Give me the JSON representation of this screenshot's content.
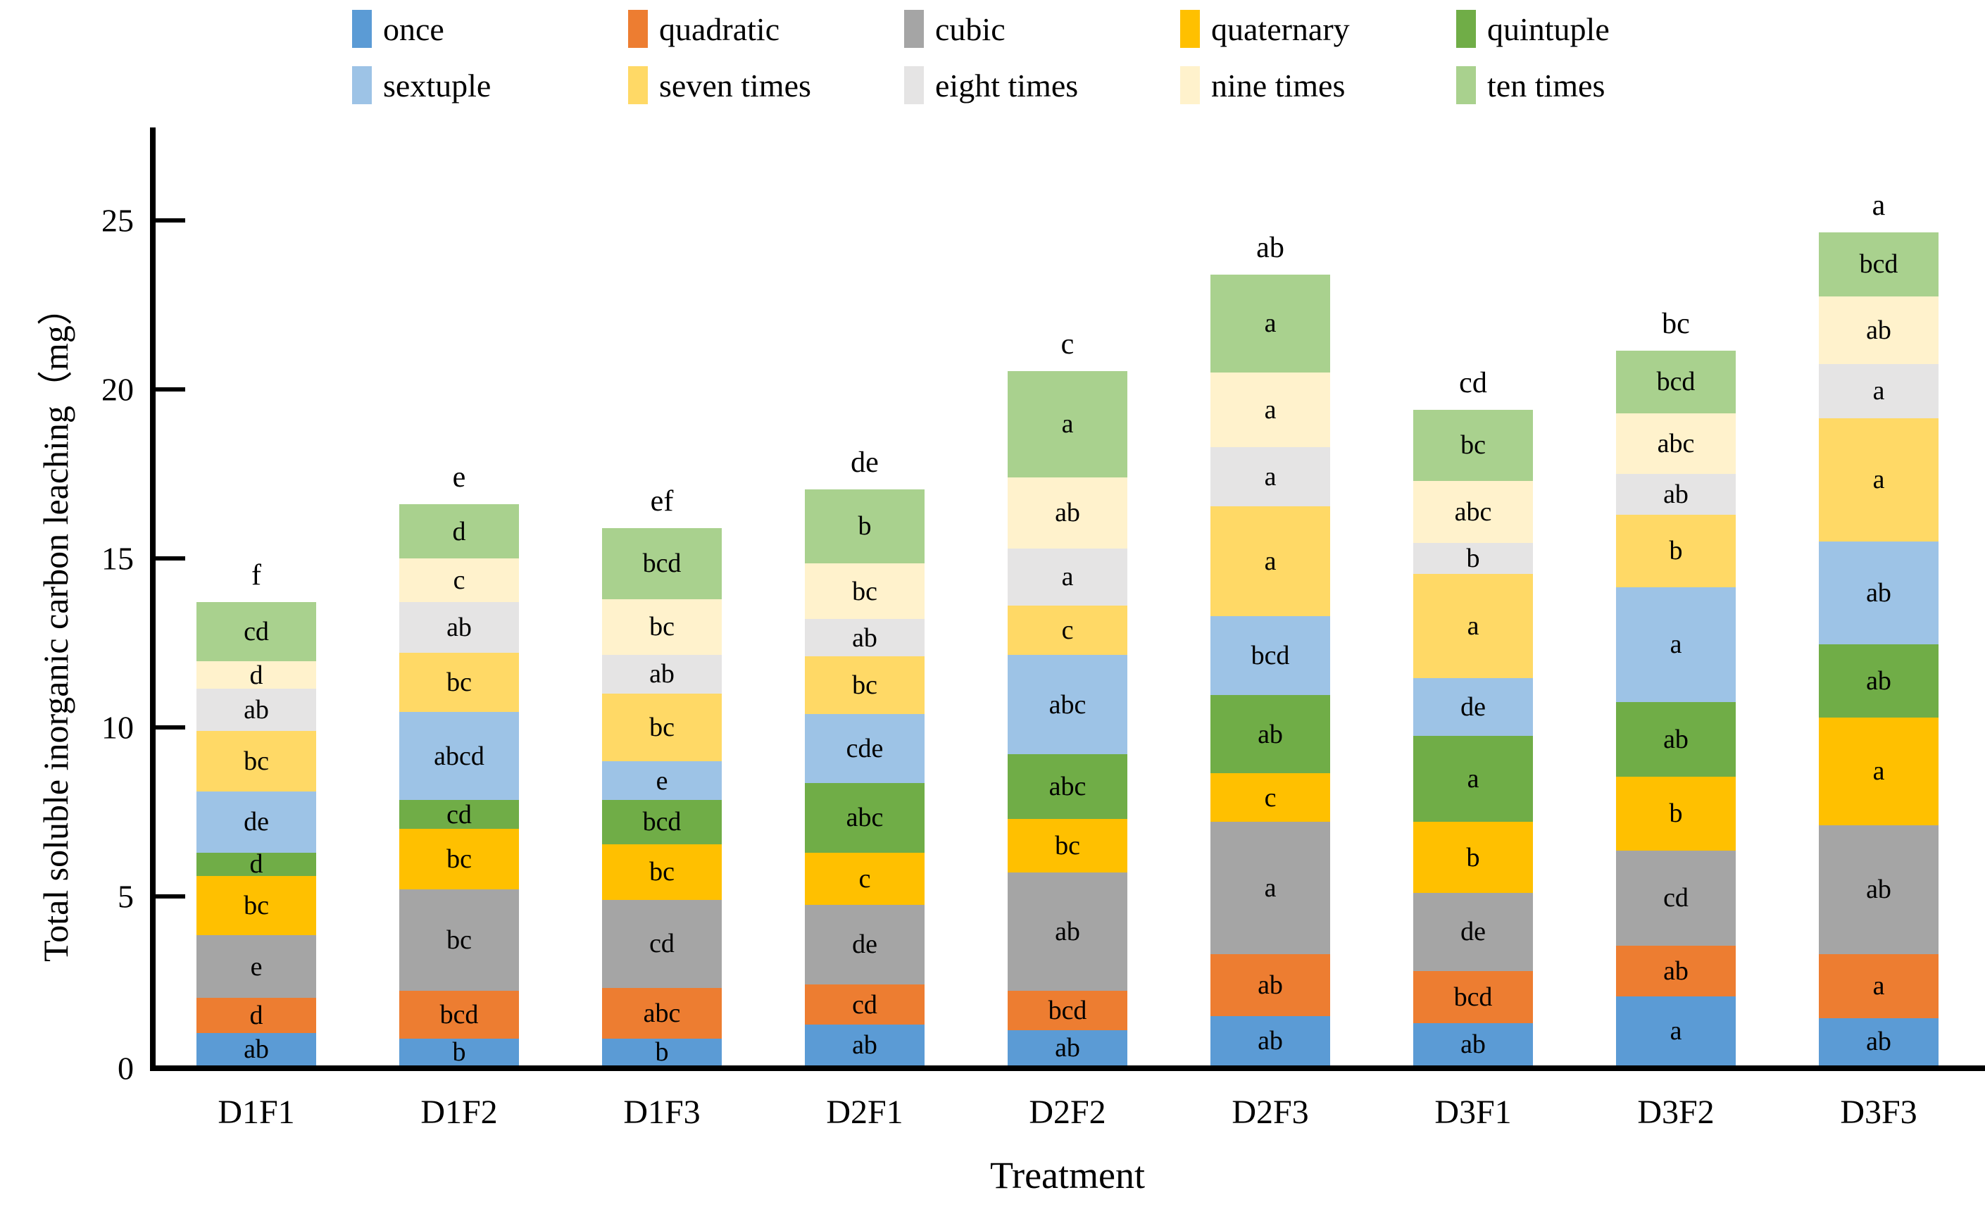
{
  "chart_data": {
    "type": "bar",
    "subtype": "stacked",
    "title": "",
    "xlabel": "Treatment",
    "ylabel": "Total soluble inorganic carbon leaching（mg）",
    "ylim": [
      0,
      27.5
    ],
    "yticks": [
      0,
      5,
      10,
      15,
      20,
      25
    ],
    "grid": false,
    "legend_position": "top",
    "categories": [
      "D1F1",
      "D1F2",
      "D1F3",
      "D2F1",
      "D2F2",
      "D2F3",
      "D3F1",
      "D3F2",
      "D3F3"
    ],
    "bar_total_labels": [
      "f",
      "e",
      "ef",
      "de",
      "c",
      "ab",
      "cd",
      "bc",
      "a"
    ],
    "bar_totals": [
      13.7,
      16.6,
      15.9,
      17.05,
      20.55,
      23.4,
      19.4,
      21.15,
      24.65
    ],
    "series": [
      {
        "name": "once",
        "color": "#5B9BD5",
        "values": [
          0.95,
          0.8,
          0.8,
          1.2,
          1.05,
          1.45,
          1.25,
          2.05,
          1.4
        ],
        "letters": [
          "ab",
          "b",
          "b",
          "ab",
          "ab",
          "ab",
          "ab",
          "a",
          "ab"
        ]
      },
      {
        "name": "quadratic",
        "color": "#ED7D31",
        "values": [
          1.05,
          1.4,
          1.5,
          1.2,
          1.15,
          1.85,
          1.55,
          1.5,
          1.9
        ],
        "letters": [
          "d",
          "bcd",
          "abc",
          "cd",
          "bcd",
          "ab",
          "bcd",
          "ab",
          "a"
        ]
      },
      {
        "name": "cubic",
        "color": "#A5A5A5",
        "values": [
          1.85,
          3.0,
          2.6,
          2.35,
          3.5,
          3.9,
          2.3,
          2.8,
          3.8
        ],
        "letters": [
          "e",
          "bc",
          "cd",
          "de",
          "ab",
          "a",
          "de",
          "cd",
          "ab"
        ]
      },
      {
        "name": "quaternary",
        "color": "#FFC000",
        "values": [
          1.75,
          1.8,
          1.65,
          1.55,
          1.6,
          1.45,
          2.1,
          2.2,
          3.2
        ],
        "letters": [
          "bc",
          "bc",
          "bc",
          "c",
          "bc",
          "c",
          "b",
          "b",
          "a"
        ]
      },
      {
        "name": "quintuple",
        "color": "#70AD47",
        "values": [
          0.7,
          0.85,
          1.3,
          2.05,
          1.9,
          2.3,
          2.55,
          2.2,
          2.15
        ],
        "letters": [
          "d",
          "cd",
          "bcd",
          "abc",
          "abc",
          "ab",
          "a",
          "ab",
          "ab"
        ]
      },
      {
        "name": "sextuple",
        "color": "#9DC3E6",
        "values": [
          1.8,
          2.6,
          1.15,
          2.05,
          2.95,
          2.35,
          1.7,
          3.4,
          3.05
        ],
        "letters": [
          "de",
          "abcd",
          "e",
          "cde",
          "abc",
          "bcd",
          "de",
          "a",
          "ab"
        ]
      },
      {
        "name": "seven times",
        "color": "#FFD966",
        "values": [
          1.8,
          1.75,
          2.0,
          1.7,
          1.45,
          3.25,
          3.1,
          2.15,
          3.65
        ],
        "letters": [
          "bc",
          "bc",
          "bc",
          "bc",
          "c",
          "a",
          "a",
          "b",
          "a"
        ]
      },
      {
        "name": "eight times",
        "color": "#E5E4E4",
        "values": [
          1.25,
          1.5,
          1.15,
          1.1,
          1.7,
          1.75,
          0.9,
          1.2,
          1.6
        ],
        "letters": [
          "ab",
          "ab",
          "ab",
          "ab",
          "a",
          "a",
          "b",
          "ab",
          "a"
        ]
      },
      {
        "name": "nine times",
        "color": "#FFF2CC",
        "values": [
          0.8,
          1.3,
          1.65,
          1.65,
          2.1,
          2.2,
          1.85,
          1.8,
          2.0
        ],
        "letters": [
          "d",
          "c",
          "bc",
          "bc",
          "ab",
          "a",
          "abc",
          "abc",
          "ab"
        ]
      },
      {
        "name": "ten times",
        "color": "#A9D18E",
        "values": [
          1.75,
          1.6,
          2.1,
          2.2,
          3.15,
          2.9,
          2.1,
          1.85,
          1.9
        ],
        "letters": [
          "cd",
          "d",
          "bcd",
          "b",
          "a",
          "a",
          "bc",
          "bcd",
          "bcd"
        ]
      }
    ],
    "legend_rows": [
      [
        "once",
        "quadratic",
        "cubic",
        "quaternary",
        "quintuple"
      ],
      [
        "sextuple",
        "seven times",
        "eight times",
        "nine times",
        "ten times"
      ]
    ]
  },
  "layout_note": "significance letters shown inside segments; group letter above each bar"
}
